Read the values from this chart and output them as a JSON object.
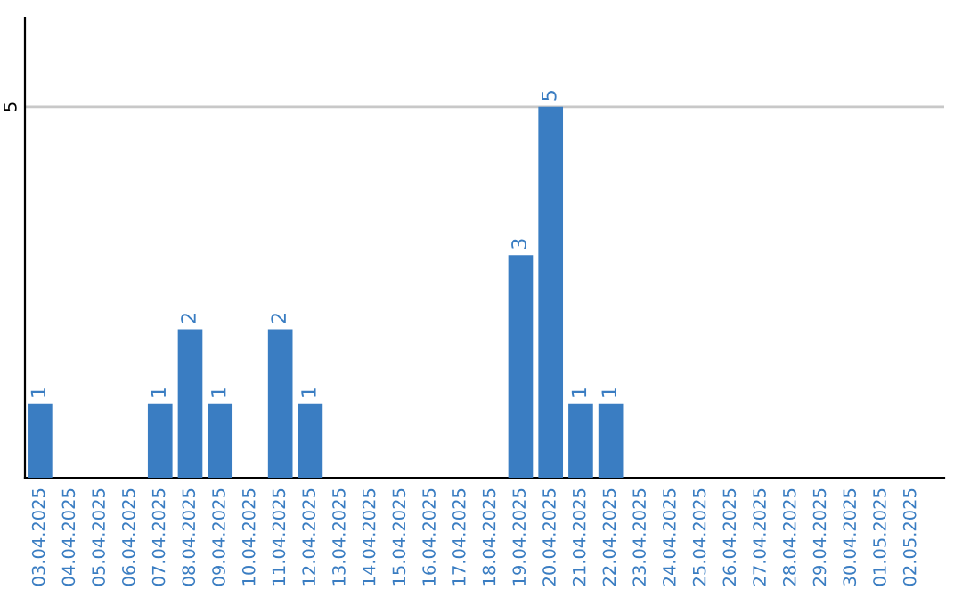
{
  "chart_data": {
    "type": "bar",
    "categories": [
      "03.04.2025",
      "04.04.2025",
      "05.04.2025",
      "06.04.2025",
      "07.04.2025",
      "08.04.2025",
      "09.04.2025",
      "10.04.2025",
      "11.04.2025",
      "12.04.2025",
      "13.04.2025",
      "14.04.2025",
      "15.04.2025",
      "16.04.2025",
      "17.04.2025",
      "18.04.2025",
      "19.04.2025",
      "20.04.2025",
      "21.04.2025",
      "22.04.2025",
      "23.04.2025",
      "24.04.2025",
      "25.04.2025",
      "26.04.2025",
      "27.04.2025",
      "28.04.2025",
      "29.04.2025",
      "30.04.2025",
      "01.05.2025",
      "02.05.2025"
    ],
    "values": [
      1,
      0,
      0,
      0,
      1,
      2,
      1,
      0,
      2,
      1,
      0,
      0,
      0,
      0,
      0,
      0,
      3,
      5,
      1,
      1,
      0,
      0,
      0,
      0,
      0,
      0,
      0,
      0,
      0,
      0
    ],
    "value_labels": [
      "1",
      null,
      null,
      null,
      "1",
      "2",
      "1",
      null,
      "2",
      "1",
      null,
      null,
      null,
      null,
      null,
      null,
      "3",
      "5",
      "1",
      "1",
      null,
      null,
      null,
      null,
      null,
      null,
      null,
      null,
      null,
      null
    ],
    "color": "#3a7dc2",
    "ylim": [
      0,
      6.2
    ],
    "yticks": [
      5
    ],
    "grid": "y",
    "legend": false
  }
}
